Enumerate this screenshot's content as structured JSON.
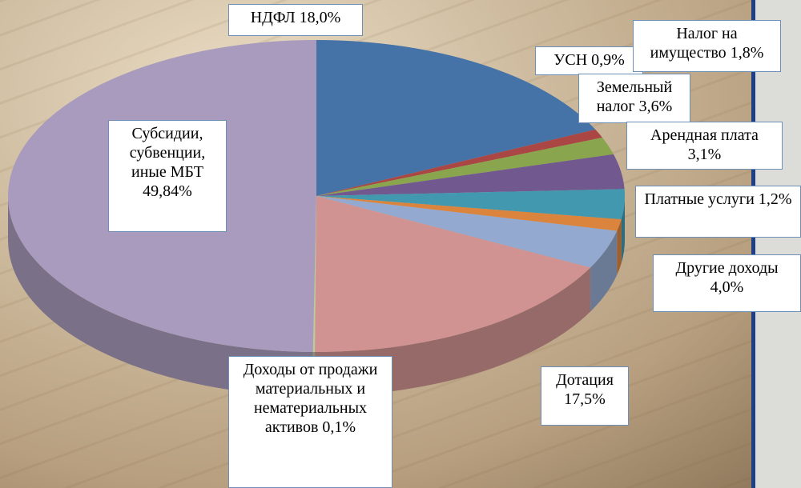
{
  "chart_data": {
    "type": "pie3d",
    "categories": [
      "НДФЛ",
      "УСН",
      "Налог на имущество",
      "Земельный налог",
      "Арендная плата",
      "Платные услуги",
      "Другие доходы",
      "Дотация",
      "Доходы от продажи материальных и нематериальных активов",
      "Субсидии, субвенции, иные МБТ"
    ],
    "values": [
      18.0,
      0.9,
      1.8,
      3.6,
      3.1,
      1.2,
      4.0,
      17.5,
      0.1,
      49.84
    ],
    "value_labels": [
      "18,0%",
      "0,9%",
      "1,8%",
      "3,6%",
      "3,1%",
      "1,2%",
      "4,0%",
      "17,5%",
      "0,1%",
      "49,84%"
    ],
    "colors": [
      "#4572a7",
      "#aa4643",
      "#89a54e",
      "#71588f",
      "#4198af",
      "#db843d",
      "#93a9cf",
      "#d19392",
      "#b9cd96",
      "#a99bbd"
    ]
  }
}
